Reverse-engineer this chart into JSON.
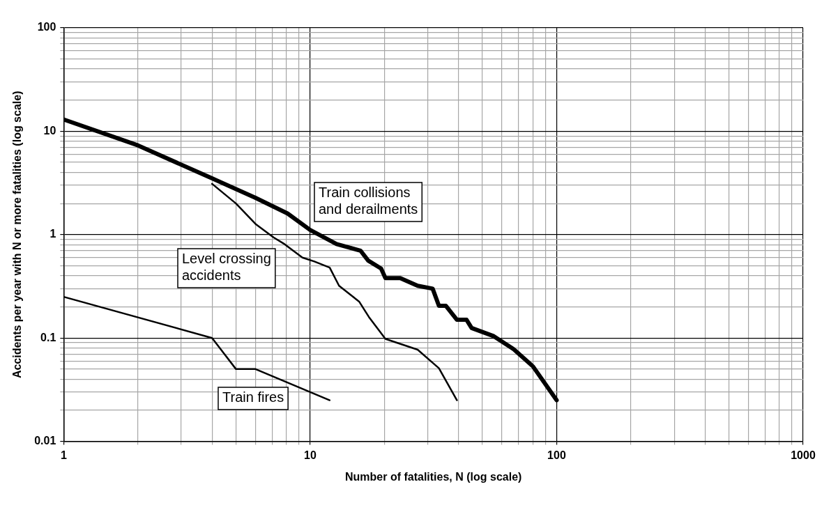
{
  "chart_data": {
    "type": "line",
    "xlabel": "Number of fatalities, N (log scale)",
    "ylabel": "Accidents per year with N or more fatalities (log scale)",
    "log": "xy",
    "grid": true,
    "legend": false,
    "marker": "none",
    "line_style": "solid",
    "xlim": [
      1,
      1000
    ],
    "xticks": [
      1,
      10,
      100,
      1000
    ],
    "ylim": [
      0.01,
      100
    ],
    "yticks": [
      0.01,
      0.1,
      1,
      10,
      100
    ],
    "series": [
      {
        "name": "Train collisions and derailments",
        "color": "#000000",
        "x": [
          1,
          2,
          4,
          6,
          8.1,
          10,
          12.8,
          16,
          17.2,
          19.4,
          20.2,
          23.2,
          27.3,
          31.4,
          33.3,
          35.5,
          39.4,
          43.1,
          45.2,
          55.6,
          66.9,
          80.2,
          100
        ],
        "values": [
          13,
          7.3,
          3.5,
          2.27,
          1.6,
          1.11,
          0.81,
          0.7,
          0.56,
          0.47,
          0.38,
          0.38,
          0.32,
          0.3,
          0.205,
          0.205,
          0.15,
          0.15,
          0.125,
          0.104,
          0.078,
          0.053,
          0.025
        ]
      },
      {
        "name": "Level crossing accidents",
        "color": "#000000",
        "x": [
          4,
          5,
          6,
          7.1,
          7.8,
          9.3,
          10.4,
          12,
          13.1,
          15.8,
          17.3,
          20.2,
          27.3,
          33.3,
          39.4
        ],
        "values": [
          3.1,
          2,
          1.27,
          0.94,
          0.82,
          0.6,
          0.55,
          0.48,
          0.32,
          0.225,
          0.16,
          0.098,
          0.077,
          0.051,
          0.025
        ]
      },
      {
        "name": "Train fires",
        "color": "#000000",
        "x": [
          1,
          4,
          5,
          6,
          12
        ],
        "values": [
          0.25,
          0.1,
          0.05,
          0.05,
          0.025
        ]
      }
    ]
  }
}
